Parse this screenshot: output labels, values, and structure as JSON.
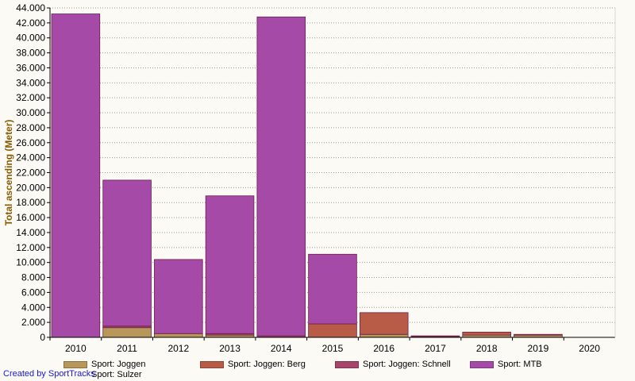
{
  "chart_data": {
    "type": "bar",
    "stacked": true,
    "ylabel": "Total ascending (Meter)",
    "ylim": [
      0,
      44000
    ],
    "ytick_step": 2000,
    "yticks": [
      "0",
      "2.000",
      "4.000",
      "6.000",
      "8.000",
      "10.000",
      "12.000",
      "14.000",
      "16.000",
      "18.000",
      "20.000",
      "22.000",
      "24.000",
      "26.000",
      "28.000",
      "30.000",
      "32.000",
      "34.000",
      "36.000",
      "38.000",
      "40.000",
      "42.000",
      "44.000"
    ],
    "grid": true,
    "legend_position": "bottom",
    "categories": [
      "2010",
      "2011",
      "2012",
      "2013",
      "2014",
      "2015",
      "2016",
      "2017",
      "2018",
      "2019",
      "2020"
    ],
    "series": [
      {
        "name": "Sport: Joggen",
        "color": "#b8975a",
        "values": [
          0,
          1300,
          500,
          300,
          0,
          0,
          400,
          100,
          300,
          300,
          0
        ]
      },
      {
        "name": "Sport: Joggen: Berg",
        "color": "#b85c47",
        "values": [
          0,
          0,
          0,
          0,
          0,
          1800,
          2900,
          100,
          400,
          100,
          0
        ]
      },
      {
        "name": "Sport: Joggen: Schnell",
        "color": "#a8456a",
        "values": [
          0,
          200,
          0,
          200,
          200,
          0,
          0,
          0,
          0,
          0,
          0
        ]
      },
      {
        "name": "Sport: MTB",
        "color": "#a64aa8",
        "values": [
          43200,
          19500,
          9900,
          18400,
          42600,
          9300,
          0,
          0,
          0,
          0,
          0
        ]
      },
      {
        "name": "Sport: Sulzer",
        "color": "#b8975a",
        "values": [
          0,
          0,
          0,
          0,
          0,
          0,
          0,
          0,
          0,
          0,
          0
        ]
      }
    ]
  },
  "credit": "Created by SportTracks"
}
